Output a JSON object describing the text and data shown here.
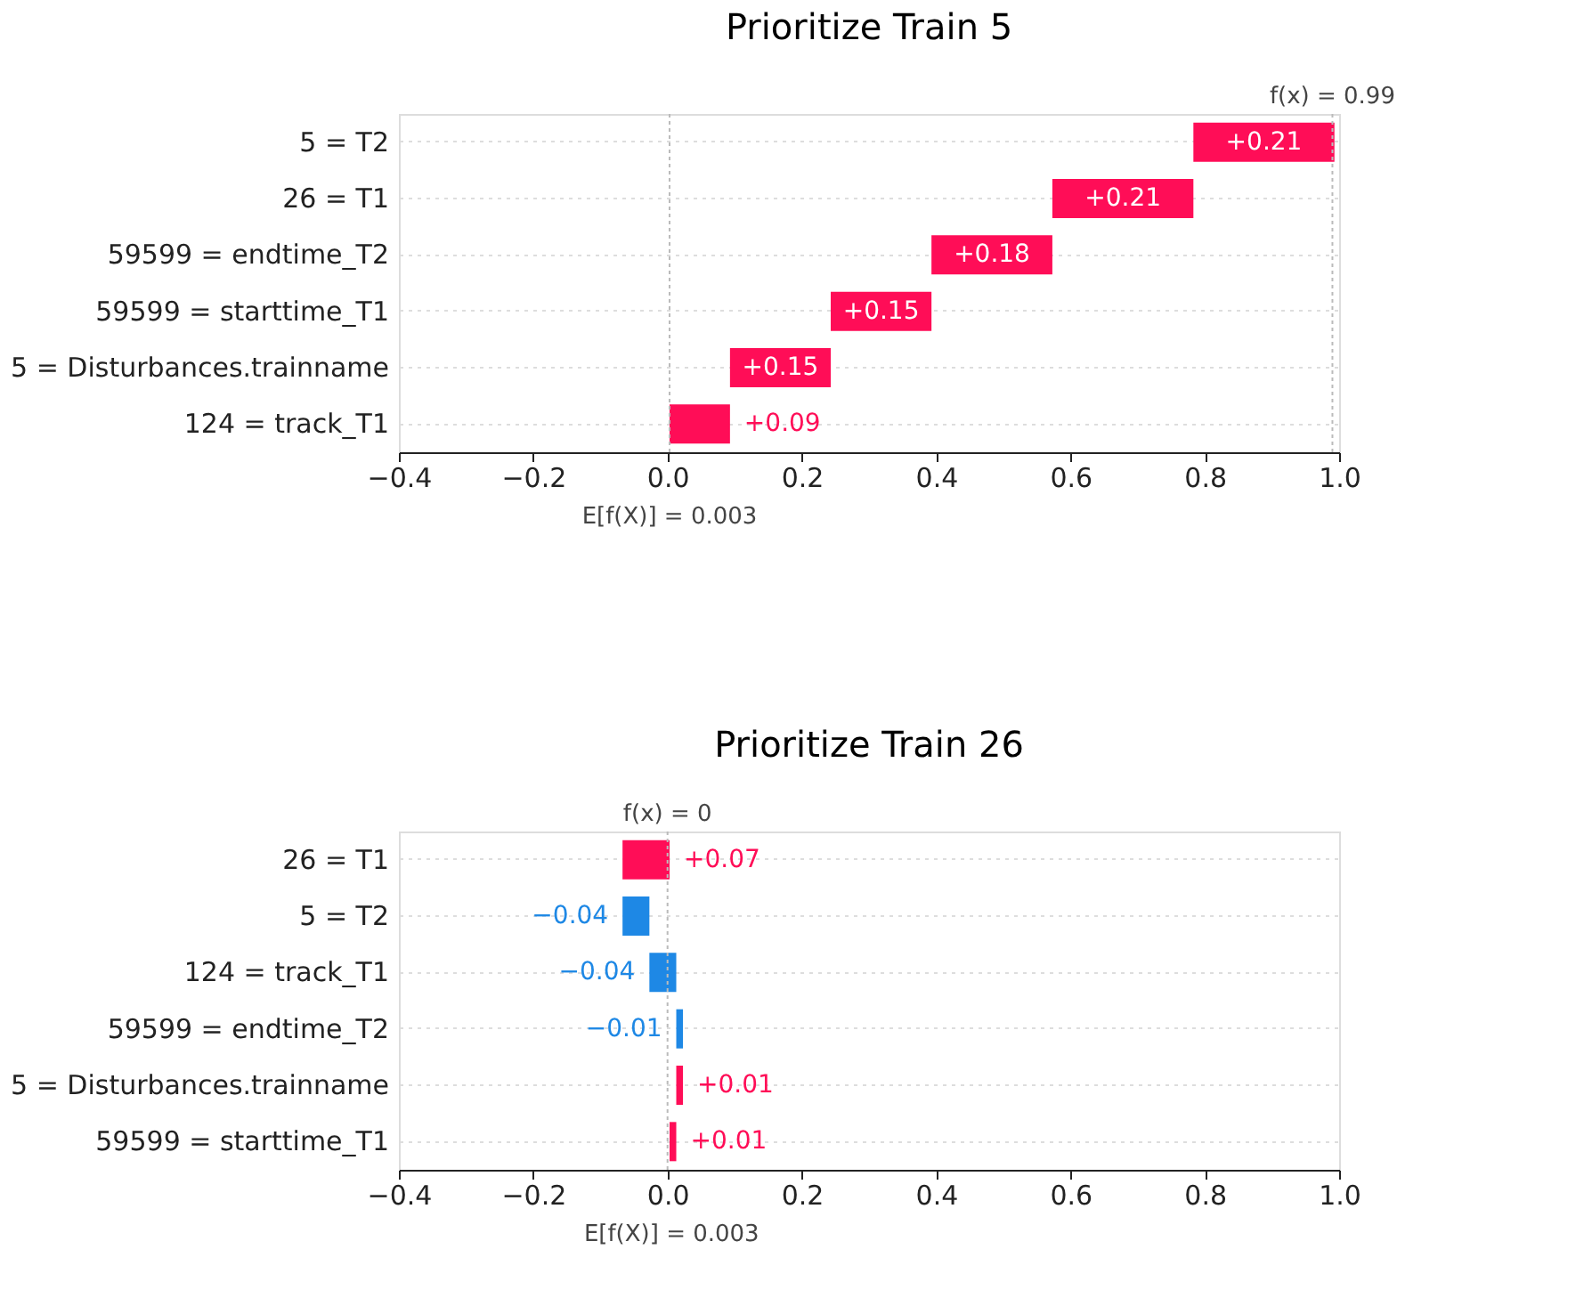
{
  "chart_data": [
    {
      "type": "bar",
      "orientation": "horizontal",
      "title": "Prioritize Train 5",
      "categories": [
        "5 = T2",
        "26 = T1",
        "59599 = endtime_T2",
        "59599 = starttime_T1",
        "5 = Disturbances.trainname",
        "124 = track_T1"
      ],
      "values": [
        0.21,
        0.21,
        0.18,
        0.15,
        0.15,
        0.09
      ],
      "base": [
        0.783,
        0.573,
        0.393,
        0.243,
        0.093,
        0.003
      ],
      "colors": [
        "#ff0d57",
        "#ff0d57",
        "#ff0d57",
        "#ff0d57",
        "#ff0d57",
        "#ff0d57"
      ],
      "value_labels": [
        "+0.21",
        "+0.21",
        "+0.18",
        "+0.15",
        "+0.15",
        "+0.09"
      ],
      "xlim": [
        -0.4,
        1.0
      ],
      "xticks": [
        {
          "value": -0.4,
          "label": "−0.4"
        },
        {
          "value": -0.2,
          "label": "−0.2"
        },
        {
          "value": 0,
          "label": "0.0"
        },
        {
          "value": 0.2,
          "label": "0.2"
        },
        {
          "value": 0.4,
          "label": "0.4"
        },
        {
          "value": 0.6,
          "label": "0.6"
        },
        {
          "value": 0.8,
          "label": "0.8"
        },
        {
          "value": 1.0,
          "label": "1.0"
        }
      ],
      "ref_lines": [
        {
          "axis": "x",
          "value": 0.99,
          "label": "f(x) = 0.99",
          "color": "#bbbbbb",
          "line_style": "dotted"
        },
        {
          "axis": "x",
          "value": 0.003,
          "label": "E[f(X)] = 0.003",
          "color": "#bbbbbb",
          "line_style": "dotted"
        }
      ],
      "grid": "y"
    },
    {
      "type": "bar",
      "orientation": "horizontal",
      "title": "Prioritize Train 26",
      "categories": [
        "26 = T1",
        "5 = T2",
        "124 = track_T1",
        "59599 = endtime_T2",
        "5 = Disturbances.trainname",
        "59599 = starttime_T1"
      ],
      "values": [
        0.07,
        -0.04,
        -0.04,
        -0.01,
        0.01,
        0.01
      ],
      "base": [
        -0.067,
        -0.027,
        0.013,
        0.023,
        0.013,
        0.003
      ],
      "colors": [
        "#ff0d57",
        "#1e88e5",
        "#1e88e5",
        "#1e88e5",
        "#ff0d57",
        "#ff0d57"
      ],
      "value_labels": [
        "+0.07",
        "−0.04",
        "−0.04",
        "−0.01",
        "+0.01",
        "+0.01"
      ],
      "xlim": [
        -0.4,
        1.0
      ],
      "xticks": [
        {
          "value": -0.4,
          "label": "−0.4"
        },
        {
          "value": -0.2,
          "label": "−0.2"
        },
        {
          "value": 0,
          "label": "0.0"
        },
        {
          "value": 0.2,
          "label": "0.2"
        },
        {
          "value": 0.4,
          "label": "0.4"
        },
        {
          "value": 0.6,
          "label": "0.6"
        },
        {
          "value": 0.8,
          "label": "0.8"
        },
        {
          "value": 1.0,
          "label": "1.0"
        }
      ],
      "ref_lines": [
        {
          "axis": "x",
          "value": 0,
          "label": "f(x) = 0",
          "color": "#bbbbbb",
          "line_style": "dotted"
        }
      ],
      "annotations": [
        "E[f(X)] = 0.003"
      ],
      "grid": "y"
    }
  ]
}
